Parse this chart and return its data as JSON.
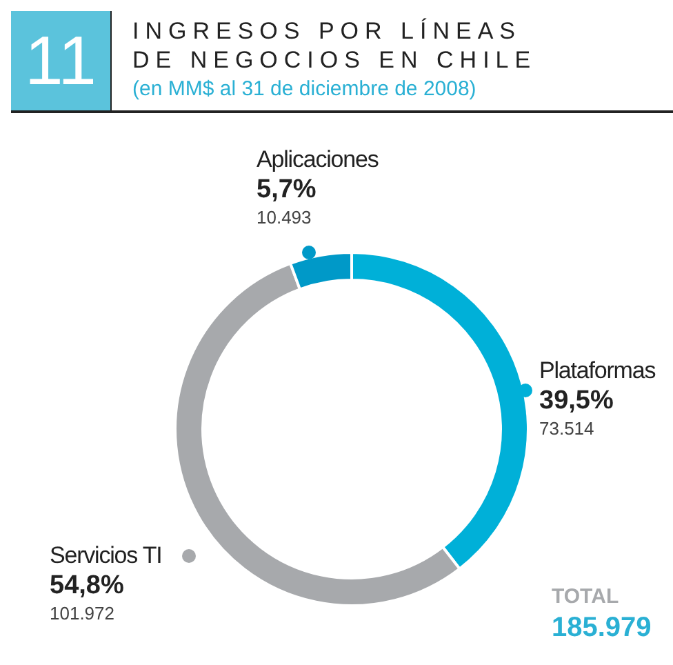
{
  "chart_data": {
    "type": "donut",
    "title": "INGRESOS POR LÍNEAS DE NEGOCIOS EN CHILE",
    "subtitle": "(en MM$ al 31 de diciembre de 2008)",
    "categories": [
      "Plataformas",
      "Servicios TI",
      "Aplicaciones"
    ],
    "values": [
      73514,
      101972,
      10493
    ],
    "colors": [
      "#00b0d8",
      "#a7a9ac",
      "#0099c8"
    ],
    "value_labels": [
      "73.514",
      "101.972",
      "10.493"
    ],
    "annotations": [
      "11",
      {
        "text": "39,5%",
        "x": "Plataformas"
      },
      {
        "text": "54,8%",
        "x": "Servicios TI"
      },
      {
        "text": "5,7%",
        "x": "Aplicaciones"
      },
      "TOTAL",
      "185.979"
    ]
  }
}
